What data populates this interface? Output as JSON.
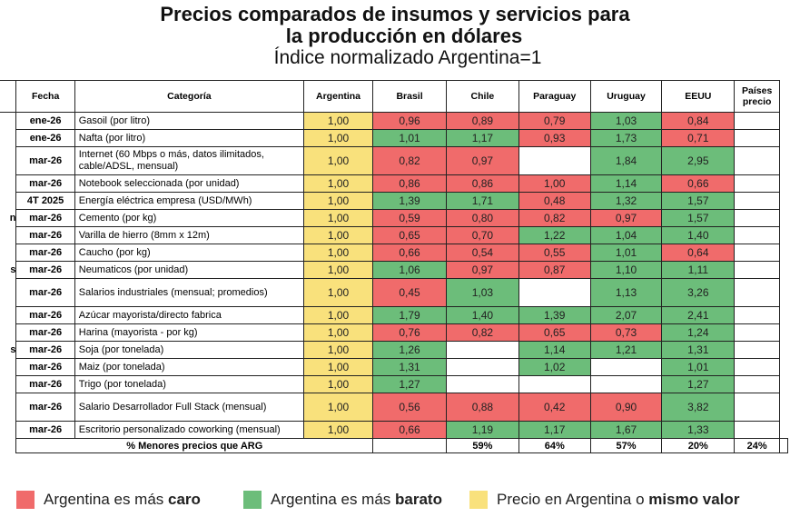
{
  "title_line1": "Precios comparados de insumos y servicios para",
  "title_line2": "la producción en dólares",
  "subtitle": "Índice normalizado Argentina=1",
  "colors": {
    "red": "#f06b6b",
    "green": "#6cbd7a",
    "yellow": "#f9e17c"
  },
  "chart_data": {
    "type": "table",
    "columns": [
      "Fecha",
      "Categoría",
      "Argentina",
      "Brasil",
      "Chile",
      "Paraguay",
      "Uruguay",
      "EEUU",
      "Países precio"
    ],
    "rows": [
      {
        "group": "",
        "fecha": "ene-26",
        "cat": "Gasoil (por litro)",
        "arg": "1,00",
        "vals": [
          [
            "0,96",
            "r"
          ],
          [
            "0,89",
            "r"
          ],
          [
            "0,79",
            "r"
          ],
          [
            "1,03",
            "g"
          ],
          [
            "0,84",
            "r"
          ]
        ]
      },
      {
        "group": "",
        "fecha": "ene-26",
        "cat": "Nafta (por litro)",
        "arg": "1,00",
        "vals": [
          [
            "1,01",
            "g"
          ],
          [
            "1,17",
            "g"
          ],
          [
            "0,93",
            "r"
          ],
          [
            "1,73",
            "g"
          ],
          [
            "0,71",
            "r"
          ]
        ]
      },
      {
        "group": "",
        "fecha": "mar-26",
        "cat": "Internet (60 Mbps o más, datos ilimitados, cable/ADSL, mensual)",
        "arg": "1,00",
        "tall": true,
        "vals": [
          [
            "0,82",
            "r"
          ],
          [
            "0,97",
            "r"
          ],
          [
            "",
            ""
          ],
          [
            "1,84",
            "g"
          ],
          [
            "2,95",
            "g"
          ]
        ]
      },
      {
        "group": "",
        "fecha": "mar-26",
        "cat": "Notebook seleccionada (por unidad)",
        "arg": "1,00",
        "vals": [
          [
            "0,86",
            "r"
          ],
          [
            "0,86",
            "r"
          ],
          [
            "1,00",
            "r"
          ],
          [
            "1,14",
            "g"
          ],
          [
            "0,66",
            "r"
          ]
        ]
      },
      {
        "group": "",
        "fecha": "4T 2025",
        "cat": "Energía eléctrica empresa (USD/MWh)",
        "arg": "1,00",
        "vals": [
          [
            "1,39",
            "g"
          ],
          [
            "1,71",
            "g"
          ],
          [
            "0,48",
            "r"
          ],
          [
            "1,32",
            "g"
          ],
          [
            "1,57",
            "g"
          ]
        ]
      },
      {
        "group": "n",
        "fecha": "mar-26",
        "cat": "Cemento (por kg)",
        "arg": "1,00",
        "vals": [
          [
            "0,59",
            "r"
          ],
          [
            "0,80",
            "r"
          ],
          [
            "0,82",
            "r"
          ],
          [
            "0,97",
            "r"
          ],
          [
            "1,57",
            "g"
          ]
        ]
      },
      {
        "group": "",
        "fecha": "mar-26",
        "cat": "Varilla de hierro (8mm x 12m)",
        "arg": "1,00",
        "vals": [
          [
            "0,65",
            "r"
          ],
          [
            "0,70",
            "r"
          ],
          [
            "1,22",
            "g"
          ],
          [
            "1,04",
            "g"
          ],
          [
            "1,40",
            "g"
          ]
        ]
      },
      {
        "group": "",
        "fecha": "mar-26",
        "cat": "Caucho (por kg)",
        "arg": "1,00",
        "vals": [
          [
            "0,66",
            "r"
          ],
          [
            "0,54",
            "r"
          ],
          [
            "0,55",
            "r"
          ],
          [
            "1,01",
            "g"
          ],
          [
            "0,64",
            "r"
          ]
        ]
      },
      {
        "group": "s",
        "fecha": "mar-26",
        "cat": "Neumaticos (por unidad)",
        "arg": "1,00",
        "vals": [
          [
            "1,06",
            "g"
          ],
          [
            "0,97",
            "r"
          ],
          [
            "0,87",
            "r"
          ],
          [
            "1,10",
            "g"
          ],
          [
            "1,11",
            "g"
          ]
        ]
      },
      {
        "group": "",
        "fecha": "mar-26",
        "cat": "Salarios industriales (mensual; promedios)",
        "arg": "1,00",
        "tall": true,
        "vals": [
          [
            "0,45",
            "r"
          ],
          [
            "1,03",
            "g"
          ],
          [
            "",
            ""
          ],
          [
            "1,13",
            "g"
          ],
          [
            "3,26",
            "g"
          ]
        ]
      },
      {
        "group": "",
        "fecha": "mar-26",
        "cat": "Azúcar mayorista/directo fabrica",
        "arg": "1,00",
        "vals": [
          [
            "1,79",
            "g"
          ],
          [
            "1,40",
            "g"
          ],
          [
            "1,39",
            "g"
          ],
          [
            "2,07",
            "g"
          ],
          [
            "2,41",
            "g"
          ]
        ]
      },
      {
        "group": "",
        "fecha": "mar-26",
        "cat": "Harina (mayorista - por kg)",
        "arg": "1,00",
        "vals": [
          [
            "0,76",
            "r"
          ],
          [
            "0,82",
            "r"
          ],
          [
            "0,65",
            "r"
          ],
          [
            "0,73",
            "r"
          ],
          [
            "1,24",
            "g"
          ]
        ]
      },
      {
        "group": "s",
        "fecha": "mar-26",
        "cat": "Soja (por tonelada)",
        "arg": "1,00",
        "vals": [
          [
            "1,26",
            "g"
          ],
          [
            "",
            ""
          ],
          [
            "1,14",
            "g"
          ],
          [
            "1,21",
            "g"
          ],
          [
            "1,31",
            "g"
          ]
        ]
      },
      {
        "group": "",
        "fecha": "mar-26",
        "cat": "Maiz (por tonelada)",
        "arg": "1,00",
        "vals": [
          [
            "1,31",
            "g"
          ],
          [
            "",
            ""
          ],
          [
            "1,02",
            "g"
          ],
          [
            "",
            ""
          ],
          [
            "1,01",
            "g"
          ]
        ]
      },
      {
        "group": "",
        "fecha": "mar-26",
        "cat": "Trigo (por tonelada)",
        "arg": "1,00",
        "vals": [
          [
            "1,27",
            "g"
          ],
          [
            "",
            ""
          ],
          [
            "",
            ""
          ],
          [
            "",
            ""
          ],
          [
            "1,27",
            "g"
          ]
        ]
      },
      {
        "group": "",
        "fecha": "mar-26",
        "cat": "Salario Desarrollador Full Stack (mensual)",
        "arg": "1,00",
        "tall": true,
        "vals": [
          [
            "0,56",
            "r"
          ],
          [
            "0,88",
            "r"
          ],
          [
            "0,42",
            "r"
          ],
          [
            "0,90",
            "r"
          ],
          [
            "3,82",
            "g"
          ]
        ]
      },
      {
        "group": "",
        "fecha": "mar-26",
        "cat": "Escritorio personalizado coworking (mensual)",
        "arg": "1,00",
        "vals": [
          [
            "0,66",
            "r"
          ],
          [
            "1,19",
            "g"
          ],
          [
            "1,17",
            "g"
          ],
          [
            "1,67",
            "g"
          ],
          [
            "1,33",
            "g"
          ]
        ]
      }
    ],
    "footer_label": "% Menores precios que ARG",
    "footer_values": [
      "59%",
      "64%",
      "57%",
      "20%",
      "24%"
    ]
  },
  "legend": [
    {
      "color": "red",
      "pre": "Argentina es más ",
      "bold": "caro"
    },
    {
      "color": "green",
      "pre": "Argentina es más ",
      "bold": "barato"
    },
    {
      "color": "yellow",
      "pre": "Precio en Argentina o ",
      "bold": "mismo valor"
    }
  ]
}
